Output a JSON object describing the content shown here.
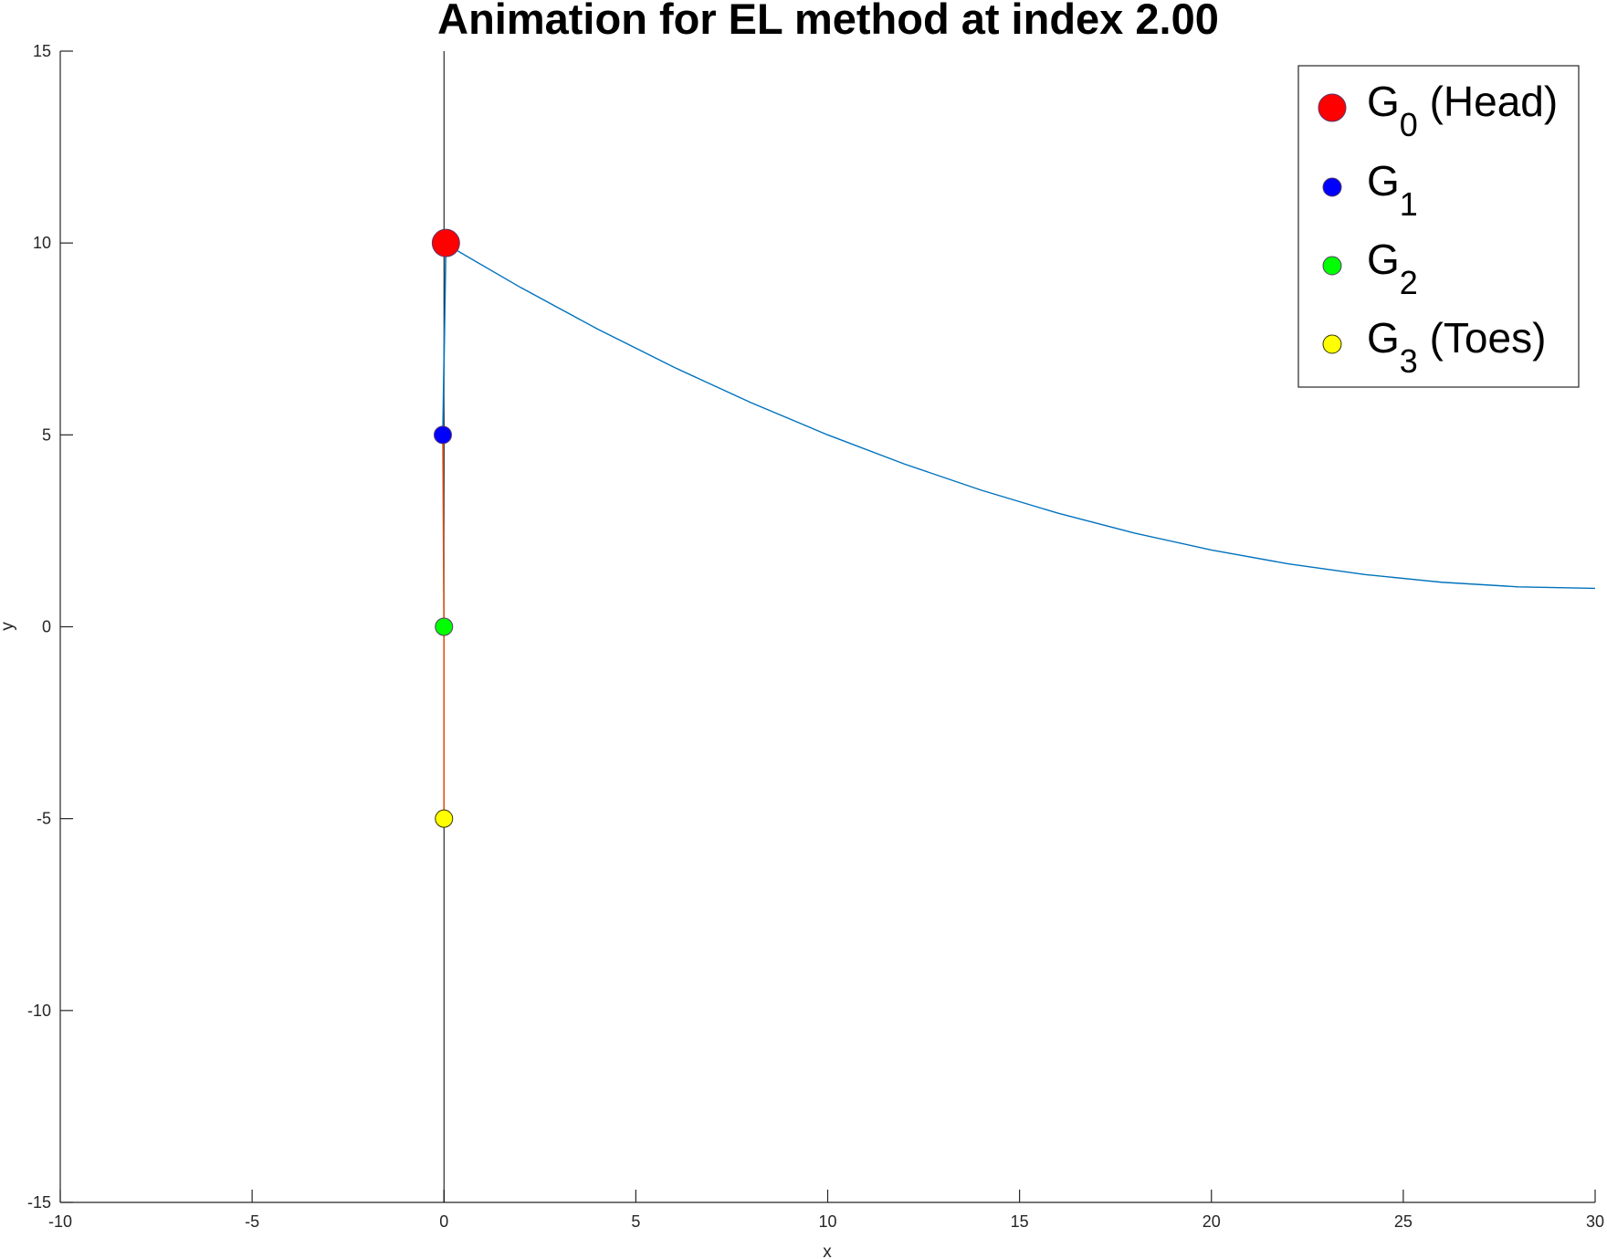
{
  "chart_data": {
    "type": "line",
    "title": "Animation for EL method at index 2.00",
    "xlabel": "x",
    "ylabel": "y",
    "xlim": [
      -10,
      30
    ],
    "ylim": [
      -15,
      15
    ],
    "xticks": [
      -10,
      -5,
      0,
      5,
      10,
      15,
      20,
      25,
      30
    ],
    "yticks": [
      -15,
      -10,
      -5,
      0,
      5,
      10,
      15
    ],
    "grid": false,
    "legend_position": "top-right",
    "colors": {
      "curve": "#0072BD",
      "segment_upper": "#0072BD",
      "segment_lower": "#D95319",
      "vertical_line": "#000000",
      "head": "#FF0000",
      "g1": "#0000FF",
      "g2": "#00FF00",
      "toes": "#FFFF00"
    },
    "curve": {
      "x": [
        0,
        2,
        4,
        6,
        8,
        10,
        12,
        14,
        16,
        18,
        20,
        22,
        24,
        26,
        28,
        30
      ],
      "y": [
        10,
        8.84,
        7.76,
        6.76,
        5.84,
        5.0,
        4.24,
        3.56,
        2.96,
        2.44,
        2.0,
        1.64,
        1.36,
        1.16,
        1.04,
        1.0
      ]
    },
    "segments": [
      {
        "name": "upper",
        "x": [
          0.05,
          -0.03
        ],
        "y": [
          10,
          5
        ]
      },
      {
        "name": "lower",
        "x": [
          -0.03,
          0,
          0
        ],
        "y": [
          5,
          0,
          -5
        ]
      }
    ],
    "points": [
      {
        "id": "G0",
        "base": "G",
        "sub": "0",
        "suffix": " (Head)",
        "x": 0.05,
        "y": 10,
        "color": "#FF0000",
        "size": "large"
      },
      {
        "id": "G1",
        "base": "G",
        "sub": "1",
        "suffix": "",
        "x": -0.03,
        "y": 5,
        "color": "#0000FF",
        "size": "small"
      },
      {
        "id": "G2",
        "base": "G",
        "sub": "2",
        "suffix": "",
        "x": 0,
        "y": 0,
        "color": "#00FF00",
        "size": "small"
      },
      {
        "id": "G3",
        "base": "G",
        "sub": "3",
        "suffix": " (Toes)",
        "x": 0,
        "y": -5,
        "color": "#FFFF00",
        "size": "small"
      }
    ]
  }
}
